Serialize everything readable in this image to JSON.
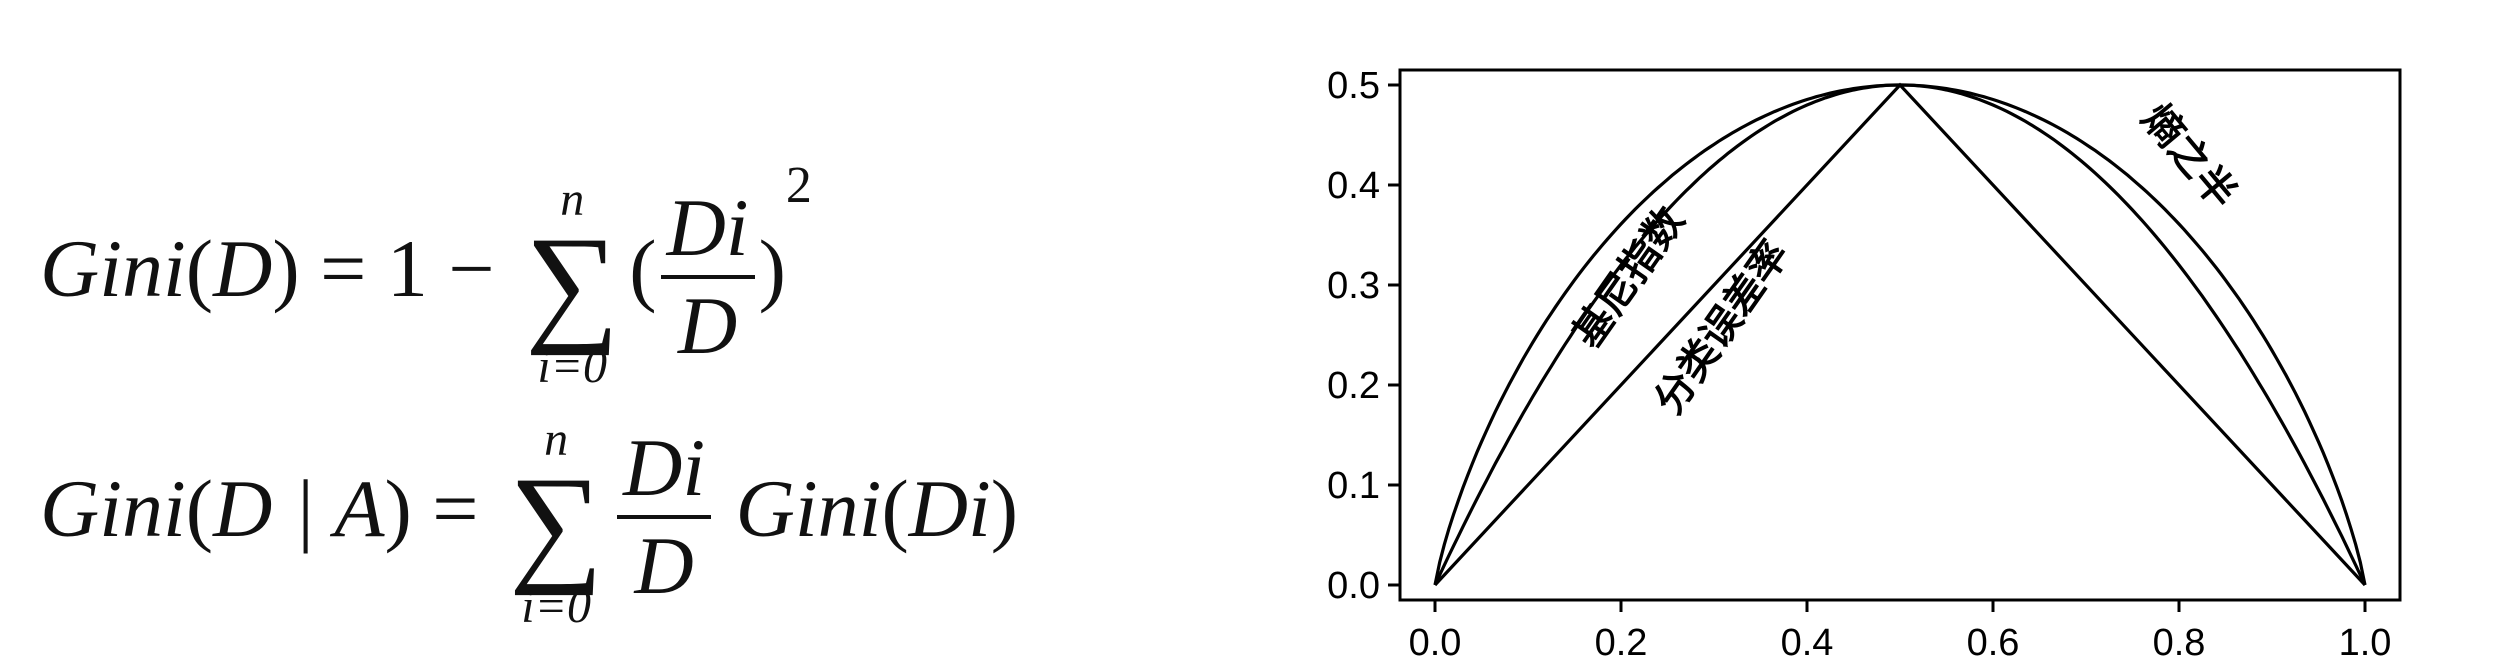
{
  "formulas": {
    "line1": {
      "lhs_fn": "Gini",
      "lhs_arg": "D",
      "eq": "=",
      "one": "1",
      "minus": "−",
      "sum_top": "n",
      "sum_sym": "∑",
      "sum_bottom": "i=0",
      "frac_num": "Di",
      "frac_den": "D",
      "exp": "2"
    },
    "line2": {
      "lhs_fn": "Gini",
      "lhs_arg": "D | A",
      "eq": "=",
      "sum_top": "n",
      "sum_sym": "∑",
      "sum_bottom": "i=0",
      "frac_num": "Di",
      "frac_den": "D",
      "rhs_fn": "Gini",
      "rhs_arg": "Di"
    }
  },
  "chart_data": {
    "type": "line",
    "title": "",
    "xlabel": "",
    "ylabel": "",
    "xlim": [
      0,
      1
    ],
    "ylim": [
      0,
      0.5
    ],
    "x_ticks": [
      "0.0",
      "0.2",
      "0.4",
      "0.6",
      "0.8",
      "1.0"
    ],
    "y_ticks": [
      "0.0",
      "0.1",
      "0.2",
      "0.3",
      "0.4",
      "0.5"
    ],
    "grid": false,
    "series": [
      {
        "name": "熵之半",
        "x": [
          0,
          0.05,
          0.1,
          0.2,
          0.3,
          0.4,
          0.5,
          0.6,
          0.7,
          0.8,
          0.9,
          0.95,
          1.0
        ],
        "y": [
          0,
          0.143,
          0.234,
          0.361,
          0.441,
          0.485,
          0.5,
          0.485,
          0.441,
          0.361,
          0.234,
          0.143,
          0
        ]
      },
      {
        "name": "基尼指数",
        "x": [
          0,
          0.05,
          0.1,
          0.2,
          0.3,
          0.4,
          0.5,
          0.6,
          0.7,
          0.8,
          0.9,
          0.95,
          1.0
        ],
        "y": [
          0,
          0.095,
          0.18,
          0.32,
          0.42,
          0.48,
          0.5,
          0.48,
          0.42,
          0.32,
          0.18,
          0.095,
          0
        ]
      },
      {
        "name": "分类误差率",
        "x": [
          0,
          0.5,
          1.0
        ],
        "y": [
          0,
          0.5,
          0
        ]
      }
    ],
    "annotations": [
      {
        "text": "熵之半",
        "x": 0.8,
        "y": 0.42
      },
      {
        "text": "基尼指数",
        "x": 0.22,
        "y": 0.3
      },
      {
        "text": "分类误差率",
        "x": 0.32,
        "y": 0.25
      }
    ]
  }
}
